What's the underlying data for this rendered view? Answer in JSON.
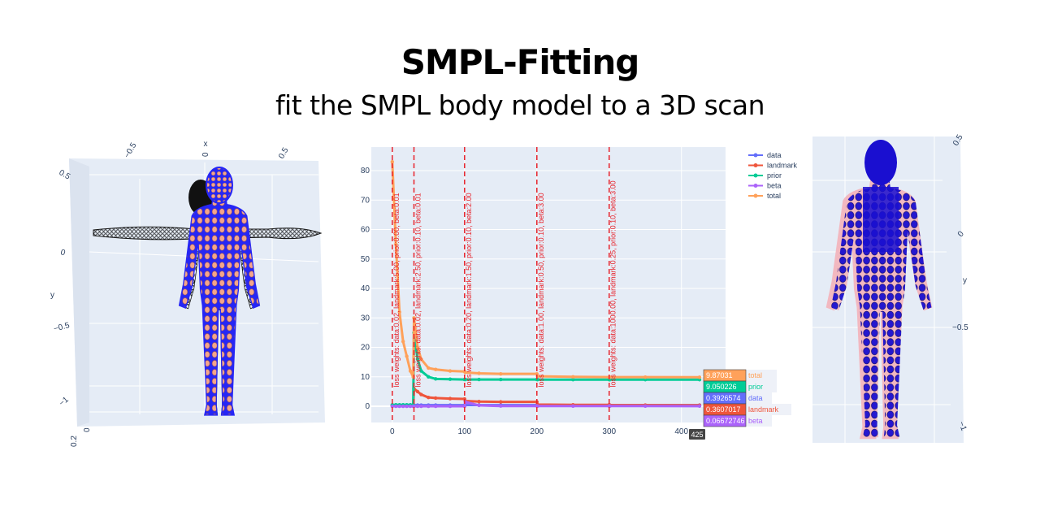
{
  "header": {
    "title": "SMPL-Fitting",
    "subtitle": "fit the SMPL body model to a 3D scan"
  },
  "left_scene": {
    "x_axis_title": "x",
    "y_axis_title": "y",
    "x_ticks": [
      "−0.5",
      "0",
      "0.5"
    ],
    "y_ticks": [
      "0.5",
      "0",
      "−0.5",
      "−1"
    ],
    "z_ticks": [
      "0",
      "0.2"
    ],
    "colors": {
      "scan": "#2626f5",
      "landmarks": "#f4a58a",
      "smpl_template": "#000000",
      "background": "#e5ecf6"
    }
  },
  "right_scene": {
    "y_axis_title": "y",
    "y_ticks": [
      "0.5",
      "0",
      "−0.5",
      "−1"
    ],
    "colors": {
      "fitted_model": "#1a0fd0",
      "scan": "#f2b8c0",
      "background": "#e5ecf6"
    }
  },
  "chart_data": {
    "type": "line",
    "xlim": [
      -29,
      461
    ],
    "ylim": [
      -5.5,
      88
    ],
    "grid": true,
    "legend_position": "top-right",
    "x_ticks": [
      0,
      100,
      200,
      300,
      400
    ],
    "y_ticks": [
      0,
      10,
      20,
      30,
      40,
      50,
      60,
      70,
      80
    ],
    "x": [
      0,
      5,
      10,
      15,
      20,
      25,
      29,
      30,
      35,
      40,
      50,
      60,
      80,
      100,
      101,
      120,
      150,
      200,
      201,
      250,
      300,
      301,
      350,
      425
    ],
    "series": [
      {
        "name": "data",
        "color": "#636efa",
        "values": [
          0.4,
          0.4,
          0.4,
          0.4,
          0.4,
          0.4,
          0.4,
          0.4,
          0.4,
          0.4,
          0.4,
          0.4,
          0.4,
          0.4,
          0.4,
          0.4,
          0.4,
          0.4,
          0.39,
          0.39,
          0.39,
          0.39,
          0.39,
          0.3926574
        ]
      },
      {
        "name": "landmark",
        "color": "#ef553b",
        "values": [
          0.3,
          0.3,
          0.3,
          0.3,
          0.3,
          0.3,
          0.3,
          6,
          5,
          4,
          3,
          2.8,
          2.6,
          2.5,
          1.8,
          1.6,
          1.5,
          1.5,
          0.6,
          0.5,
          0.5,
          0.4,
          0.4,
          0.3607017
        ]
      },
      {
        "name": "prior",
        "color": "#00cc96",
        "values": [
          0.5,
          0.5,
          0.5,
          0.5,
          0.5,
          0.5,
          0.5,
          25,
          16,
          12,
          10,
          9.3,
          9.2,
          9.1,
          9.1,
          9.1,
          9.1,
          9.1,
          9.05,
          9.05,
          9.05,
          9.05,
          9.05,
          9.050226
        ]
      },
      {
        "name": "beta",
        "color": "#ab63fa",
        "values": [
          0,
          0,
          0,
          0,
          0,
          0,
          0,
          0,
          0,
          0,
          0,
          0,
          0,
          0,
          1.5,
          0.3,
          0.1,
          0.1,
          0.08,
          0.07,
          0.07,
          0.07,
          0.07,
          0.06672746
        ]
      },
      {
        "name": "total",
        "color": "#ffa15a",
        "values": [
          83,
          55,
          32,
          22,
          17,
          12,
          10,
          30,
          20,
          16,
          13,
          12.5,
          12,
          11.8,
          11.5,
          11.2,
          11,
          11,
          10.2,
          10,
          9.9,
          9.9,
          9.9,
          9.87031
        ]
      }
    ],
    "vlines": [
      {
        "x": 0,
        "label": "loss weights: data:0.02, landmark:5.00, prior:0.00, beta:0.01"
      },
      {
        "x": 30,
        "label": "loss weights: data:0.02, landmark:2.50, prior:0.10, beta:0.01"
      },
      {
        "x": 100,
        "label": "loss weights: data:0.20, landmark:1.50, prior:0.10, beta:2.00"
      },
      {
        "x": 200,
        "label": "loss weights: data:1.00, landmark:0.50, prior:0.10, beta:3.00"
      },
      {
        "x": 300,
        "label": "loss weights: data:1000.00, landmark:0.25, prior:0.10, beta:3.00"
      }
    ],
    "hover": {
      "x_label": "425",
      "items": [
        {
          "series": "total",
          "value": "9.87031"
        },
        {
          "series": "prior",
          "value": "9.050226"
        },
        {
          "series": "data",
          "value": "0.3926574"
        },
        {
          "series": "landmark",
          "value": "0.3607017"
        },
        {
          "series": "beta",
          "value": "0.06672746"
        }
      ]
    }
  }
}
